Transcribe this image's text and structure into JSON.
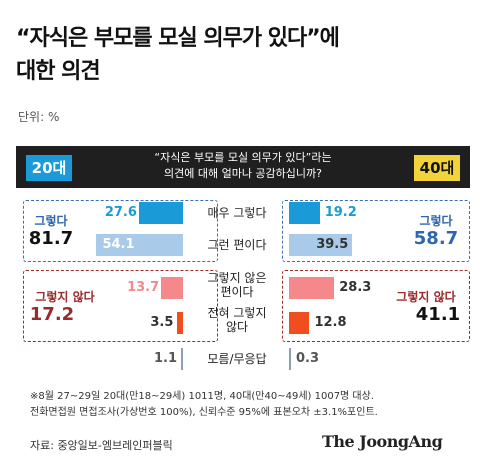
{
  "title_line1": "“자식은 부모를 모실 의무가 있다”에",
  "title_line2": "대한 의견",
  "unit": "단위: %",
  "header": {
    "left_badge": "20대",
    "right_badge": "40대",
    "question_line1": "“자식은 부모를 모실 의무가 있다”라는",
    "question_line2": "의견에 대해 얼마나 공감하십니까?"
  },
  "groups": {
    "agree_label": "그렇다",
    "agree_20": "81.7",
    "agree_40": "58.7",
    "disagree_label": "그렇지 않다",
    "disagree_20": "17.2",
    "disagree_40": "41.1"
  },
  "chart_data": {
    "type": "bar",
    "title": "“자식은 부모를 모실 의무가 있다”에 대한 의견",
    "unit": "%",
    "categories": [
      [
        "매우 그렇다"
      ],
      [
        "그런 편이다"
      ],
      [
        "그렇지 않은",
        "편이다"
      ],
      [
        "전혀 그렇지",
        "않다"
      ],
      [
        "모름/무응답"
      ]
    ],
    "series": [
      {
        "name": "20대",
        "values": [
          27.6,
          54.1,
          13.7,
          3.5,
          1.1
        ]
      },
      {
        "name": "40대",
        "values": [
          19.2,
          39.5,
          28.3,
          12.8,
          0.3
        ]
      }
    ],
    "colors": [
      "#1a9ad6",
      "#a9cbe9",
      "#f4888a",
      "#f04e1f",
      "#8aa0b4"
    ]
  },
  "notes": [
    "※8월 27~29일 20대(만18~29세) 1011명, 40대(만40~49세) 1007명 대상.",
    "전화면접원 면접조사(가상번호 100%), 신뢰수준 95%에 표본오차 ±3.1%포인트."
  ],
  "source": "자료: 중앙일보-엠브레인퍼블릭",
  "logo": "The JoongAng"
}
